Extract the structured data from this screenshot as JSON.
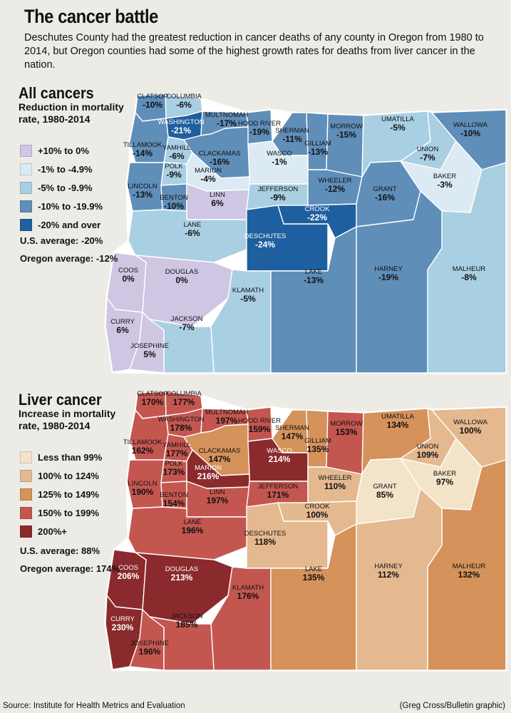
{
  "header": {
    "title": "The cancer battle",
    "intro": "Deschutes County had the greatest reduction in cancer deaths of any county in Oregon from 1980 to 2014, but Oregon counties had some of the highest growth rates for deaths from liver cancer in the nation."
  },
  "all_cancers": {
    "title": "All cancers",
    "subtitle": "Reduction in mortality rate, 1980-2014",
    "legend": [
      {
        "label": "+10% to 0%",
        "color": "#cfc6e3"
      },
      {
        "label": "-1% to -4.9%",
        "color": "#dbeaf3"
      },
      {
        "label": "-5% to -9.9%",
        "color": "#a9cfe3"
      },
      {
        "label": "-10% to -19.9%",
        "color": "#5f8eb9"
      },
      {
        "label": "-20% and over",
        "color": "#1e5f9f"
      }
    ],
    "us_average": "U.S. average: -20%",
    "oregon_average": "Oregon average: -12%",
    "counties": [
      {
        "name": "CLATSOP",
        "value": "-10%"
      },
      {
        "name": "COLUMBIA",
        "value": "-6%"
      },
      {
        "name": "WASHINGTON",
        "value": "-21%"
      },
      {
        "name": "MULTNOMAH",
        "value": "-17%"
      },
      {
        "name": "TILLAMOOK",
        "value": "-14%"
      },
      {
        "name": "YAMHILL",
        "value": "-6%"
      },
      {
        "name": "CLACKAMAS",
        "value": "-16%"
      },
      {
        "name": "HOOD RIVER",
        "value": "-19%"
      },
      {
        "name": "SHERMAN",
        "value": "-11%"
      },
      {
        "name": "GILLIAM",
        "value": "-13%"
      },
      {
        "name": "MORROW",
        "value": "-15%"
      },
      {
        "name": "UMATILLA",
        "value": "-5%"
      },
      {
        "name": "UNION",
        "value": "-7%"
      },
      {
        "name": "WALLOWA",
        "value": "-10%"
      },
      {
        "name": "WASCO",
        "value": "-1%"
      },
      {
        "name": "POLK",
        "value": "-9%"
      },
      {
        "name": "MARION",
        "value": "-4%"
      },
      {
        "name": "LINCOLN",
        "value": "-13%"
      },
      {
        "name": "BENTON",
        "value": "-10%"
      },
      {
        "name": "LINN",
        "value": "6%"
      },
      {
        "name": "JEFFERSON",
        "value": "-9%"
      },
      {
        "name": "WHEELER",
        "value": "-12%"
      },
      {
        "name": "GRANT",
        "value": "-16%"
      },
      {
        "name": "BAKER",
        "value": "-3%"
      },
      {
        "name": "LANE",
        "value": "-6%"
      },
      {
        "name": "DESCHUTES",
        "value": "-24%"
      },
      {
        "name": "CROOK",
        "value": "-22%"
      },
      {
        "name": "MALHEUR",
        "value": "-8%"
      },
      {
        "name": "COOS",
        "value": "0%"
      },
      {
        "name": "DOUGLAS",
        "value": "0%"
      },
      {
        "name": "KLAMATH",
        "value": "-5%"
      },
      {
        "name": "LAKE",
        "value": "-13%"
      },
      {
        "name": "HARNEY",
        "value": "-19%"
      },
      {
        "name": "CURRY",
        "value": "6%"
      },
      {
        "name": "JOSEPHINE",
        "value": "5%"
      },
      {
        "name": "JACKSON",
        "value": "-7%"
      }
    ]
  },
  "liver_cancer": {
    "title": "Liver cancer",
    "subtitle": "Increase in mortality rate, 1980-2014",
    "legend": [
      {
        "label": "Less than 99%",
        "color": "#f3e3c8"
      },
      {
        "label": "100% to 124%",
        "color": "#e4b98f"
      },
      {
        "label": "125% to 149%",
        "color": "#d5925a"
      },
      {
        "label": "150% to 199%",
        "color": "#c45650"
      },
      {
        "label": "200%+",
        "color": "#8a2a2c"
      }
    ],
    "us_average": "U.S. average: 88%",
    "oregon_average": "Oregon average: 174%",
    "counties": [
      {
        "name": "CLATSOP",
        "value": "170%"
      },
      {
        "name": "COLUMBIA",
        "value": "177%"
      },
      {
        "name": "WASHINGTON",
        "value": "178%"
      },
      {
        "name": "MULTNOMAH",
        "value": "197%"
      },
      {
        "name": "TILLAMOOK",
        "value": "162%"
      },
      {
        "name": "YAMHILL",
        "value": "177%"
      },
      {
        "name": "CLACKAMAS",
        "value": "147%"
      },
      {
        "name": "HOOD RIVER",
        "value": "159%"
      },
      {
        "name": "SHERMAN",
        "value": "147%"
      },
      {
        "name": "GILLIAM",
        "value": "135%"
      },
      {
        "name": "MORROW",
        "value": "153%"
      },
      {
        "name": "UMATILLA",
        "value": "134%"
      },
      {
        "name": "UNION",
        "value": "109%"
      },
      {
        "name": "WALLOWA",
        "value": "100%"
      },
      {
        "name": "WASCO",
        "value": "214%"
      },
      {
        "name": "POLK",
        "value": "173%"
      },
      {
        "name": "MARION",
        "value": "216%"
      },
      {
        "name": "LINCOLN",
        "value": "190%"
      },
      {
        "name": "BENTON",
        "value": "154%"
      },
      {
        "name": "LINN",
        "value": "197%"
      },
      {
        "name": "JEFFERSON",
        "value": "171%"
      },
      {
        "name": "WHEELER",
        "value": "110%"
      },
      {
        "name": "GRANT",
        "value": "85%"
      },
      {
        "name": "BAKER",
        "value": "97%"
      },
      {
        "name": "LANE",
        "value": "196%"
      },
      {
        "name": "DESCHUTES",
        "value": "118%"
      },
      {
        "name": "CROOK",
        "value": "100%"
      },
      {
        "name": "MALHEUR",
        "value": "132%"
      },
      {
        "name": "COOS",
        "value": "206%"
      },
      {
        "name": "DOUGLAS",
        "value": "213%"
      },
      {
        "name": "KLAMATH",
        "value": "176%"
      },
      {
        "name": "LAKE",
        "value": "135%"
      },
      {
        "name": "HARNEY",
        "value": "112%"
      },
      {
        "name": "CURRY",
        "value": "230%"
      },
      {
        "name": "JOSEPHINE",
        "value": "196%"
      },
      {
        "name": "JACKSON",
        "value": "185%"
      }
    ]
  },
  "footer": {
    "source": "Source: Institute for Health Metrics and Evaluation",
    "credit": "(Greg Cross/Bulletin graphic)"
  }
}
